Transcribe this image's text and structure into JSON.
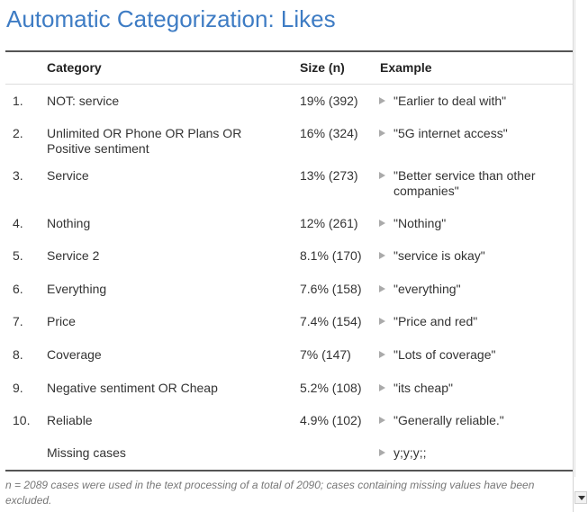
{
  "title": "Automatic Categorization: Likes",
  "table": {
    "headers": {
      "category": "Category",
      "size": "Size (n)",
      "example": "Example"
    },
    "rows": [
      {
        "num": "1.",
        "category": "NOT: service",
        "size": "19% (392)",
        "example": "\"Earlier to deal with\""
      },
      {
        "num": "2.",
        "category": "Unlimited OR Phone OR Plans OR Positive sentiment",
        "size": "16% (324)",
        "example": "\"5G internet access\""
      },
      {
        "num": "3.",
        "category": "Service",
        "size": "13% (273)",
        "example": "\"Better service than other companies\""
      },
      {
        "num": "4.",
        "category": "Nothing",
        "size": "12% (261)",
        "example": "\"Nothing\""
      },
      {
        "num": "5.",
        "category": "Service 2",
        "size": "8.1% (170)",
        "example": "\"service is okay\""
      },
      {
        "num": "6.",
        "category": "Everything",
        "size": "7.6% (158)",
        "example": "\"everything\""
      },
      {
        "num": "7.",
        "category": "Price",
        "size": "7.4% (154)",
        "example": "\"Price and red\""
      },
      {
        "num": "8.",
        "category": "Coverage",
        "size": "7% (147)",
        "example": "\"Lots of coverage\""
      },
      {
        "num": "9.",
        "category": "Negative sentiment OR Cheap",
        "size": "5.2% (108)",
        "example": "\"its cheap\""
      },
      {
        "num": "10.",
        "category": "Reliable",
        "size": "4.9% (102)",
        "example": "\"Generally reliable.\""
      },
      {
        "num": "",
        "category": "Missing cases",
        "size": "",
        "example": "y;y;y;;"
      }
    ]
  },
  "footnote": "n = 2089 cases were used in the text processing of a total of 2090; cases containing missing values have been excluded.",
  "colors": {
    "title": "#3e7cc4",
    "text": "#333333",
    "rule": "#555555",
    "footnote": "#777777"
  }
}
